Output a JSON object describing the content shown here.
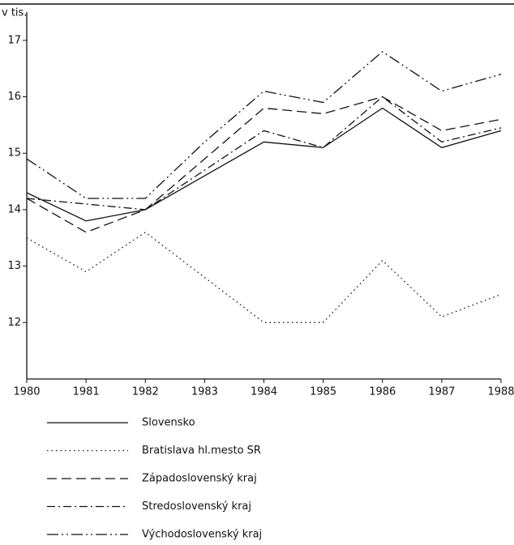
{
  "chart_data": {
    "type": "line",
    "ylabel": "v tis.",
    "x": [
      1980,
      1981,
      1982,
      1983,
      1984,
      1985,
      1986,
      1987,
      1988
    ],
    "xlim": [
      1980,
      1988
    ],
    "xticks": [
      1980,
      1981,
      1982,
      1983,
      1984,
      1985,
      1986,
      1987,
      1988
    ],
    "ylim": [
      11,
      17.5
    ],
    "yticks": [
      12,
      13,
      14,
      15,
      16,
      17
    ],
    "legend": "bottom",
    "series": [
      {
        "name": "Slovensko",
        "color": "#111111",
        "dash": "none",
        "values": [
          14.3,
          13.8,
          14.0,
          14.6,
          15.2,
          15.1,
          15.8,
          15.1,
          15.4
        ]
      },
      {
        "name": "Bratislava hl.mesto SR",
        "color": "#111111",
        "dash": "1.5 4",
        "values": [
          13.5,
          12.9,
          13.6,
          12.8,
          12.0,
          12.0,
          13.1,
          12.1,
          12.5
        ]
      },
      {
        "name": "Západoslovenský kraj",
        "color": "#111111",
        "dash": "12 6",
        "values": [
          14.2,
          13.6,
          14.0,
          14.9,
          15.8,
          15.7,
          16.0,
          15.4,
          15.6
        ]
      },
      {
        "name": "Stredoslovenský kraj",
        "color": "#111111",
        "dash": "10 4 2 4",
        "values": [
          14.2,
          14.1,
          14.0,
          14.7,
          15.4,
          15.1,
          16.0,
          15.2,
          15.45
        ]
      },
      {
        "name": "Východoslovenský kraj",
        "color": "#111111",
        "dash": "14 4 2 4 2 4",
        "values": [
          14.9,
          14.2,
          14.2,
          15.2,
          16.1,
          15.9,
          16.8,
          16.1,
          16.4
        ]
      }
    ]
  }
}
